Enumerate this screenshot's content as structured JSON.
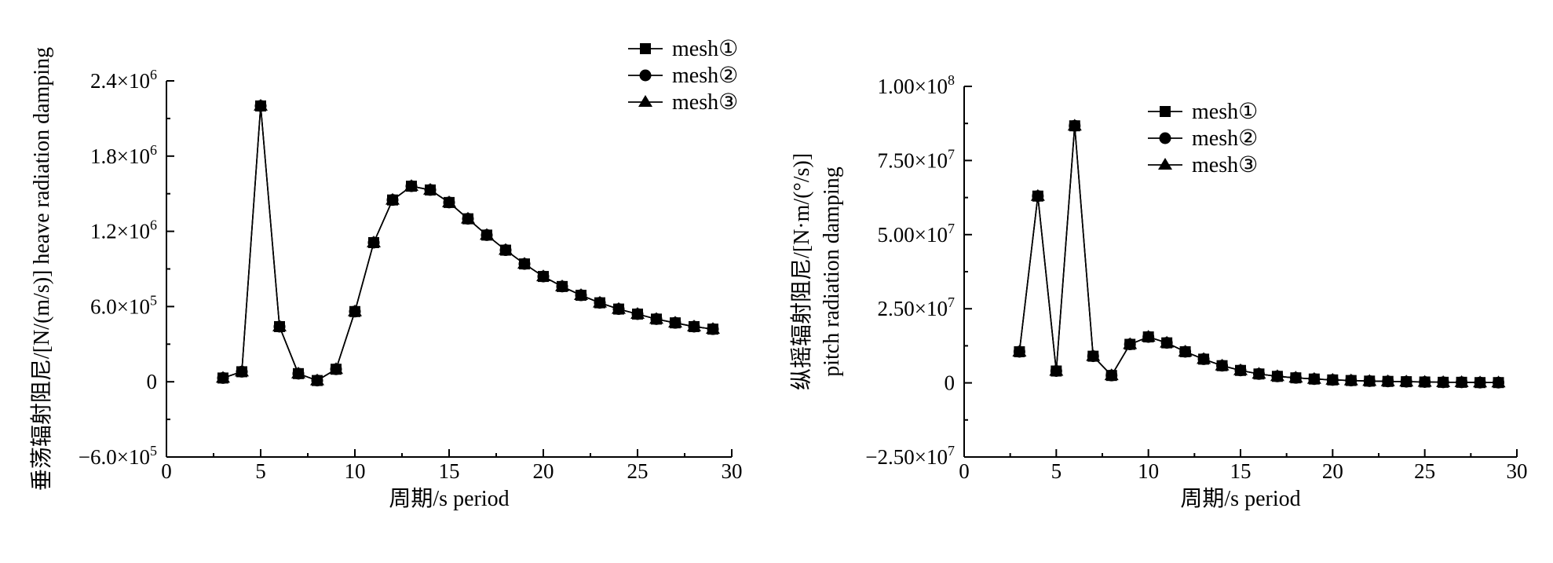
{
  "chart_data": [
    {
      "type": "line",
      "xlabel": "周期/s period",
      "ylabel": "垂荡辐射阻尼/[N/(m/s)] heave radiation damping",
      "ylabel_lines": [
        "垂荡辐射阻尼/[N/(m/s)] heave radiation damping"
      ],
      "xlim": [
        0,
        30
      ],
      "ylim": [
        -600000,
        2400000
      ],
      "x_ticks": [
        {
          "value": 0,
          "label": "0"
        },
        {
          "value": 5,
          "label": "5"
        },
        {
          "value": 10,
          "label": "10"
        },
        {
          "value": 15,
          "label": "15"
        },
        {
          "value": 20,
          "label": "20"
        },
        {
          "value": 25,
          "label": "25"
        },
        {
          "value": 30,
          "label": "30"
        }
      ],
      "y_ticks": [
        {
          "value": -600000,
          "mant": "−6.0×10",
          "exp": "5"
        },
        {
          "value": 0,
          "mant": "0",
          "exp": ""
        },
        {
          "value": 600000,
          "mant": "6.0×10",
          "exp": "5"
        },
        {
          "value": 1200000,
          "mant": "1.2×10",
          "exp": "6"
        },
        {
          "value": 1800000,
          "mant": "1.8×10",
          "exp": "6"
        },
        {
          "value": 2400000,
          "mant": "2.4×10",
          "exp": "6"
        }
      ],
      "legend_position": "top-right",
      "grid": false,
      "x": [
        3,
        4,
        5,
        6,
        7,
        8,
        9,
        10,
        11,
        12,
        13,
        14,
        15,
        16,
        17,
        18,
        19,
        20,
        21,
        22,
        23,
        24,
        25,
        26,
        27,
        28,
        29
      ],
      "series": [
        {
          "name": "mesh①",
          "marker": "square",
          "values": [
            30000,
            80000,
            2200000,
            440000,
            65000,
            10000,
            100000,
            560000,
            1110000,
            1450000,
            1560000,
            1530000,
            1430000,
            1300000,
            1170000,
            1050000,
            940000,
            840000,
            760000,
            690000,
            630000,
            580000,
            540000,
            500000,
            470000,
            440000,
            420000
          ]
        },
        {
          "name": "mesh②",
          "marker": "circle",
          "values": [
            30000,
            80000,
            2200000,
            440000,
            65000,
            10000,
            100000,
            560000,
            1110000,
            1450000,
            1560000,
            1530000,
            1430000,
            1300000,
            1170000,
            1050000,
            940000,
            840000,
            760000,
            690000,
            630000,
            580000,
            540000,
            500000,
            470000,
            440000,
            420000
          ]
        },
        {
          "name": "mesh③",
          "marker": "triangle",
          "values": [
            30000,
            80000,
            2200000,
            440000,
            65000,
            10000,
            100000,
            560000,
            1110000,
            1450000,
            1560000,
            1530000,
            1430000,
            1300000,
            1170000,
            1050000,
            940000,
            840000,
            760000,
            690000,
            630000,
            580000,
            540000,
            500000,
            470000,
            440000,
            420000
          ]
        }
      ]
    },
    {
      "type": "line",
      "xlabel": "周期/s period",
      "ylabel": "纵摇辐射阻尼/[N·m/(°/s)] pitch radiation damping",
      "ylabel_lines": [
        "纵摇辐射阻尼/[N·m/(°/s)]",
        "pitch radiation damping"
      ],
      "xlim": [
        0,
        30
      ],
      "ylim": [
        -25000000,
        100000000
      ],
      "x_ticks": [
        {
          "value": 0,
          "label": "0"
        },
        {
          "value": 5,
          "label": "5"
        },
        {
          "value": 10,
          "label": "10"
        },
        {
          "value": 15,
          "label": "15"
        },
        {
          "value": 20,
          "label": "20"
        },
        {
          "value": 25,
          "label": "25"
        },
        {
          "value": 30,
          "label": "30"
        }
      ],
      "y_ticks": [
        {
          "value": -25000000,
          "mant": "−2.50×10",
          "exp": "7"
        },
        {
          "value": 0,
          "mant": "0",
          "exp": ""
        },
        {
          "value": 25000000,
          "mant": "2.50×10",
          "exp": "7"
        },
        {
          "value": 50000000,
          "mant": "5.00×10",
          "exp": "7"
        },
        {
          "value": 75000000,
          "mant": "7.50×10",
          "exp": "7"
        },
        {
          "value": 100000000,
          "mant": "1.00×10",
          "exp": "8"
        }
      ],
      "legend_position": "top-center",
      "grid": false,
      "x": [
        3,
        4,
        5,
        6,
        7,
        8,
        9,
        10,
        11,
        12,
        13,
        14,
        15,
        16,
        17,
        18,
        19,
        20,
        21,
        22,
        23,
        24,
        25,
        26,
        27,
        28,
        29
      ],
      "series": [
        {
          "name": "mesh①",
          "marker": "square",
          "values": [
            10500000,
            63000000,
            4000000,
            86700000,
            9000000,
            2500000,
            13000000,
            15500000,
            13500000,
            10500000,
            8000000,
            5800000,
            4200000,
            3000000,
            2200000,
            1700000,
            1300000,
            1000000,
            800000,
            600000,
            500000,
            400000,
            300000,
            200000,
            200000,
            100000,
            100000
          ]
        },
        {
          "name": "mesh②",
          "marker": "circle",
          "values": [
            10500000,
            63000000,
            4000000,
            86700000,
            9000000,
            2500000,
            13000000,
            15500000,
            13500000,
            10500000,
            8000000,
            5800000,
            4200000,
            3000000,
            2200000,
            1700000,
            1300000,
            1000000,
            800000,
            600000,
            500000,
            400000,
            300000,
            200000,
            200000,
            100000,
            100000
          ]
        },
        {
          "name": "mesh③",
          "marker": "triangle",
          "values": [
            10500000,
            63000000,
            4000000,
            86700000,
            9000000,
            2500000,
            13000000,
            15500000,
            13500000,
            10500000,
            8000000,
            5800000,
            4200000,
            3000000,
            2200000,
            1700000,
            1300000,
            1000000,
            800000,
            600000,
            500000,
            400000,
            300000,
            200000,
            200000,
            100000,
            100000
          ]
        }
      ]
    }
  ]
}
